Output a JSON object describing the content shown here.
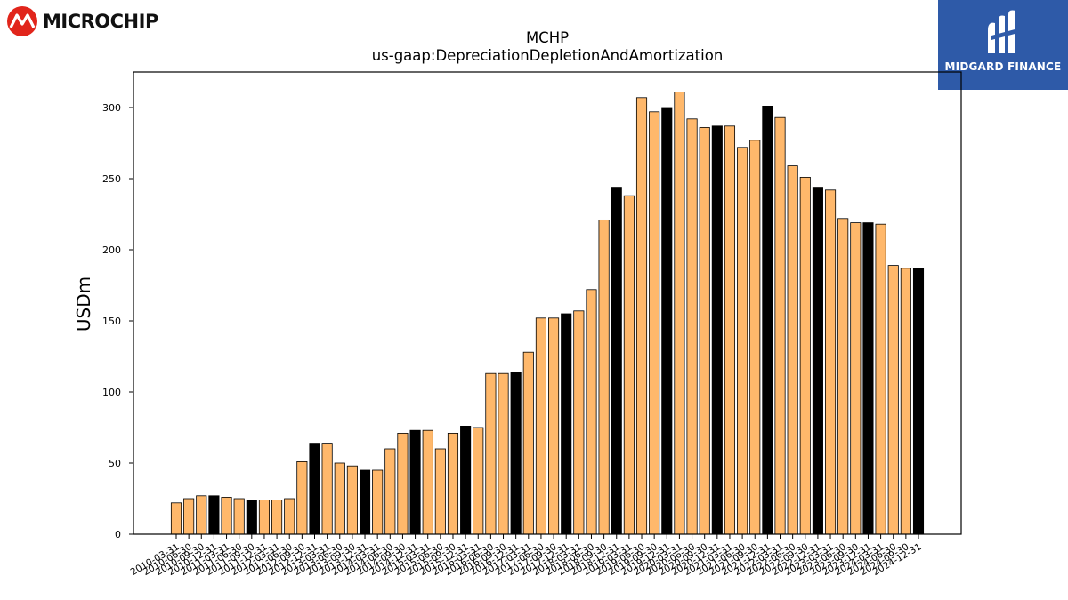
{
  "logos": {
    "left": {
      "name": "Microchip",
      "text": "MICROCHIP",
      "color": "#e1251b"
    },
    "right": {
      "name": "Midgard Finance",
      "text": "MIDGARD FINANCE",
      "color": "#2e5aa8"
    }
  },
  "chart_data": {
    "type": "bar",
    "title": "MCHP",
    "subtitle": "us-gaap:DepreciationDepletionAndAmortization",
    "xlabel": "",
    "ylabel": "USDm",
    "ylim": [
      0,
      325
    ],
    "yticks": [
      0,
      50,
      100,
      150,
      200,
      250,
      300
    ],
    "grid": false,
    "legend": "none",
    "colors": {
      "quarter": "#ffb86b",
      "fiscal_year_end": "#000000",
      "edge": "#000000"
    },
    "categories": [
      "2010-03-31",
      "2010-06-30",
      "2010-09-30",
      "2010-12-31",
      "2011-03-31",
      "2011-06-30",
      "2011-09-30",
      "2011-12-31",
      "2012-03-31",
      "2012-06-30",
      "2012-09-30",
      "2012-12-31",
      "2013-03-31",
      "2013-06-30",
      "2013-09-30",
      "2013-12-31",
      "2014-03-31",
      "2014-06-30",
      "2014-09-30",
      "2014-12-31",
      "2015-03-31",
      "2015-06-30",
      "2015-09-30",
      "2015-12-31",
      "2016-03-31",
      "2016-06-30",
      "2016-09-30",
      "2016-12-31",
      "2017-03-31",
      "2017-06-30",
      "2017-09-30",
      "2017-12-31",
      "2018-03-31",
      "2018-06-30",
      "2018-09-30",
      "2018-12-31",
      "2019-03-31",
      "2019-06-30",
      "2019-09-30",
      "2019-12-31",
      "2020-03-31",
      "2020-06-30",
      "2020-09-30",
      "2020-12-31",
      "2021-03-31",
      "2021-06-30",
      "2021-09-30",
      "2021-12-31",
      "2022-03-31",
      "2022-06-30",
      "2022-09-30",
      "2022-12-31",
      "2023-03-31",
      "2023-06-30",
      "2023-09-30",
      "2023-12-31",
      "2024-03-31",
      "2024-06-30",
      "2024-09-30",
      "2024-12-31"
    ],
    "values": [
      22,
      25,
      27,
      27,
      26,
      25,
      24,
      24,
      24,
      25,
      51,
      64,
      64,
      50,
      48,
      45,
      45,
      60,
      71,
      73,
      73,
      60,
      71,
      76,
      75,
      113,
      113,
      114,
      128,
      152,
      152,
      155,
      157,
      172,
      221,
      244,
      238,
      307,
      297,
      300,
      311,
      292,
      286,
      287,
      287,
      272,
      277,
      301,
      293,
      259,
      251,
      244,
      242,
      222,
      219,
      219,
      218,
      189,
      187,
      187
    ],
    "fiscal_year_end_flags": [
      0,
      0,
      0,
      1,
      0,
      0,
      1,
      0,
      0,
      0,
      0,
      1,
      0,
      0,
      0,
      1,
      0,
      0,
      0,
      1,
      0,
      0,
      0,
      1,
      0,
      0,
      0,
      1,
      0,
      0,
      0,
      1,
      0,
      0,
      0,
      1,
      0,
      0,
      0,
      1,
      0,
      0,
      0,
      1,
      0,
      0,
      0,
      1,
      0,
      0,
      0,
      1,
      0,
      0,
      0,
      1,
      0,
      0,
      0,
      1
    ]
  }
}
